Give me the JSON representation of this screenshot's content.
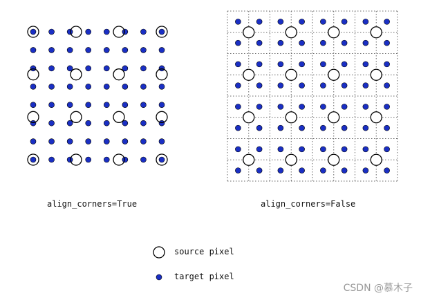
{
  "panels": {
    "left": {
      "caption": "align_corners=True"
    },
    "right": {
      "caption": "align_corners=False"
    }
  },
  "legend": {
    "source_label": "source pixel",
    "target_label": "target pixel"
  },
  "watermark": "CSDN @慕木子",
  "colors": {
    "target_dot": "#1a2fc4",
    "source_ring": "#000000",
    "grid": "#666666"
  }
}
